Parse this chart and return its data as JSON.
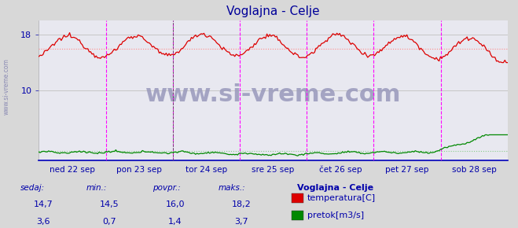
{
  "title": "Voglajna - Celje",
  "title_color": "#000099",
  "bg_color": "#d8d8d8",
  "plot_bg_color": "#e8e8f0",
  "grid_color": "#c0c0c0",
  "axis_color": "#0000cc",
  "y_min": 0,
  "y_max": 20,
  "y_ticks": [
    10,
    18
  ],
  "avg_temp": 16.0,
  "avg_flow": 1.4,
  "temp_color": "#dd0000",
  "flow_color": "#008800",
  "avg_temp_color": "#ff8888",
  "avg_flow_color": "#88cc88",
  "vline_color": "#ff00ff",
  "watermark": "www.si-vreme.com",
  "watermark_color": "#9999bb",
  "watermark_fontsize": 22,
  "bottom_labels": [
    "sedaj:",
    "min.:",
    "povpr.:",
    "maks.:"
  ],
  "temp_stats": [
    "14,7",
    "14,5",
    "16,0",
    "18,2"
  ],
  "flow_stats": [
    "3,6",
    "0,7",
    "1,4",
    "3,7"
  ],
  "legend_title": "Voglajna - Celje",
  "legend_items": [
    "temperatura[C]",
    "pretok[m3/s]"
  ],
  "legend_colors": [
    "#dd0000",
    "#008800"
  ],
  "x_tick_labels": [
    "ned 22 sep",
    "pon 23 sep",
    "tor 24 sep",
    "sre 25 sep",
    "čet 26 sep",
    "pet 27 sep",
    "sob 28 sep"
  ],
  "x_tick_positions": [
    0,
    1,
    2,
    3,
    4,
    5,
    6
  ],
  "label_color": "#0000aa",
  "n_points": 336
}
